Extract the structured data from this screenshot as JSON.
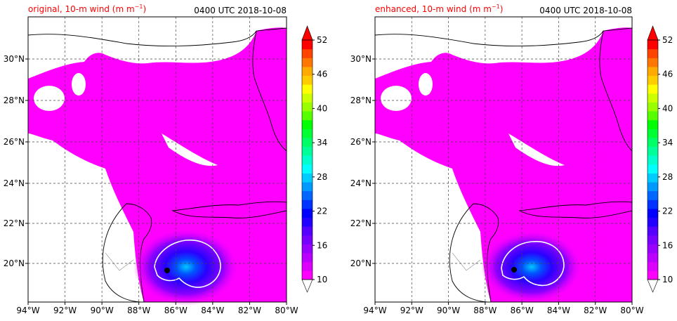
{
  "panels": [
    {
      "name": "original",
      "title_left": "original, 10-m wind (m m",
      "title_left_sup": "−1",
      "title_left_end": ")",
      "title_right": "0400 UTC 2018-10-08"
    },
    {
      "name": "enhanced",
      "title_left": "enhanced, 10-m wind (m m",
      "title_left_sup": "−1",
      "title_left_end": ")",
      "title_right": "0400 UTC 2018-10-08"
    }
  ],
  "lon_labels": [
    "94°W",
    "92°W",
    "90°W",
    "88°W",
    "86°W",
    "84°W",
    "82°W",
    "80°W"
  ],
  "lat_labels": [
    "30°N",
    "28°N",
    "26°N",
    "24°N",
    "22°N",
    "20°N"
  ],
  "colorbar": {
    "tick_labels": [
      "52",
      "46",
      "40",
      "34",
      "28",
      "22",
      "16",
      "10"
    ],
    "min": 10,
    "max": 52,
    "extend": "both",
    "colors": [
      "#ff00ff",
      "#dd00ff",
      "#bb00ff",
      "#9900ff",
      "#7700ff",
      "#5500ff",
      "#2200ff",
      "#0000ff",
      "#0033ff",
      "#0066ff",
      "#0099ff",
      "#00ccff",
      "#00ffff",
      "#00ffcc",
      "#00ff99",
      "#00ff66",
      "#00ff33",
      "#00ff00",
      "#55ff00",
      "#99ff00",
      "#ccff00",
      "#ffff00",
      "#ffcc00",
      "#ffaa00",
      "#ff7700",
      "#ff4400",
      "#ff0000"
    ]
  },
  "map_style": {
    "land_color": "#ffffff",
    "wind_base": "#ff00ff",
    "core_color": "#3a00ff",
    "contour_color": "#ffffff"
  }
}
